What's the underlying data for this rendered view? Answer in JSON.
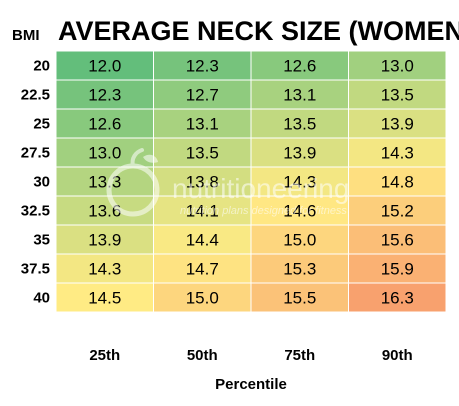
{
  "chart_data": {
    "type": "heatmap",
    "title": "AVERAGE NECK SIZE (WOMEN)",
    "row_header": "BMI",
    "xlabel": "Percentile",
    "columns": [
      "25th",
      "50th",
      "75th",
      "90th"
    ],
    "rows": [
      "20",
      "22.5",
      "25",
      "27.5",
      "30",
      "32.5",
      "35",
      "37.5",
      "40"
    ],
    "values": [
      [
        12.0,
        12.3,
        12.6,
        13.0
      ],
      [
        12.3,
        12.7,
        13.1,
        13.5
      ],
      [
        12.6,
        13.1,
        13.5,
        13.9
      ],
      [
        13.0,
        13.5,
        13.9,
        14.3
      ],
      [
        13.3,
        13.8,
        14.3,
        14.8
      ],
      [
        13.6,
        14.1,
        14.6,
        15.2
      ],
      [
        13.9,
        14.4,
        15.0,
        15.6
      ],
      [
        14.3,
        14.7,
        15.3,
        15.9
      ],
      [
        14.5,
        15.0,
        15.5,
        16.3
      ]
    ],
    "value_labels": [
      [
        "12.0",
        "12.3",
        "12.6",
        "13.0"
      ],
      [
        "12.3",
        "12.7",
        "13.1",
        "13.5"
      ],
      [
        "12.6",
        "13.1",
        "13.5",
        "13.9"
      ],
      [
        "13.0",
        "13.5",
        "13.9",
        "14.3"
      ],
      [
        "13.3",
        "13.8",
        "14.3",
        "14.8"
      ],
      [
        "13.6",
        "14.1",
        "14.6",
        "15.2"
      ],
      [
        "13.9",
        "14.4",
        "15.0",
        "15.6"
      ],
      [
        "14.3",
        "14.7",
        "15.3",
        "15.9"
      ],
      [
        "14.5",
        "15.0",
        "15.5",
        "16.3"
      ]
    ],
    "color_scale": {
      "min_value": 12.0,
      "mid_value": 14.5,
      "max_value": 16.3,
      "min_color": "#63be7b",
      "mid_color": "#ffeb84",
      "max_color": "#f8a16e"
    }
  },
  "watermark": {
    "name": "nutritioneering",
    "tagline": "nutrition plans designed for fitness",
    "icon": "apple-logo-icon"
  }
}
